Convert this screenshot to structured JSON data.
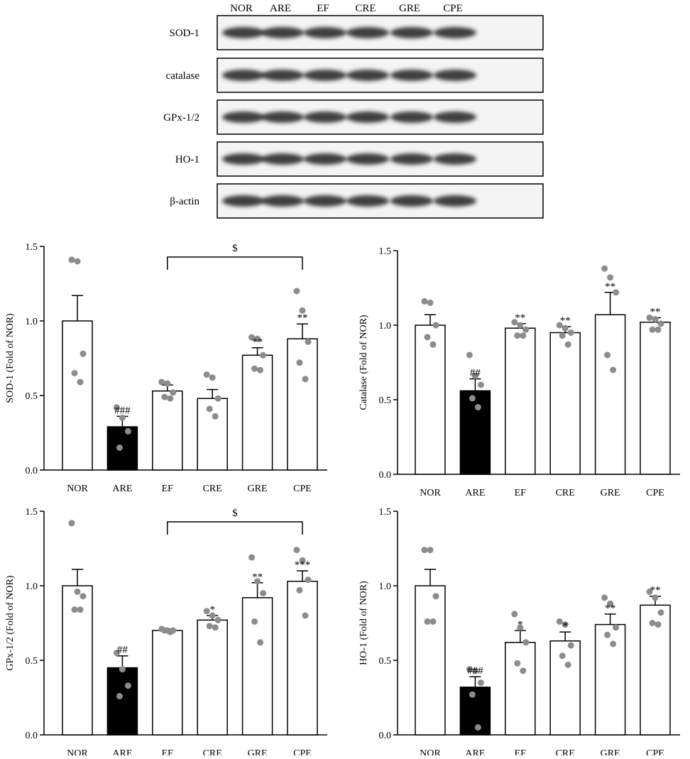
{
  "blot": {
    "lanes": [
      "NOR",
      "ARE",
      "EF",
      "CRE",
      "GRE",
      "CPE"
    ],
    "rows": [
      "SOD-1",
      "catalase",
      "GPx-1/2",
      "HO-1",
      "β-actin"
    ]
  },
  "chart_data": [
    {
      "type": "bar",
      "ylabel": "SOD-1 (Fold of NOR)",
      "categories": [
        "NOR",
        "ARE",
        "EF",
        "CRE",
        "GRE",
        "CPE"
      ],
      "values": [
        1.0,
        0.29,
        0.53,
        0.48,
        0.77,
        0.88
      ],
      "errors": [
        0.17,
        0.07,
        0.04,
        0.06,
        0.05,
        0.1
      ],
      "points": [
        [
          1.41,
          1.4,
          0.78,
          0.65,
          0.59
        ],
        [
          0.42,
          0.35,
          0.26,
          0.15
        ],
        [
          0.59,
          0.58,
          0.52,
          0.49,
          0.48
        ],
        [
          0.64,
          0.62,
          0.48,
          0.41,
          0.36
        ],
        [
          0.89,
          0.88,
          0.77,
          0.68,
          0.67
        ],
        [
          1.2,
          1.07,
          0.86,
          0.72,
          0.61
        ]
      ],
      "annotations": [
        null,
        "###",
        null,
        null,
        "**",
        "**"
      ],
      "bracket": {
        "label": "$",
        "categories": [
          "EF",
          "CPE"
        ]
      },
      "colors": [
        "#ffffff",
        "#000000",
        "#ffffff",
        "#ffffff",
        "#ffffff",
        "#ffffff"
      ],
      "point_color": "#8c8c8c",
      "ylim": [
        0,
        1.5
      ],
      "yticks": [
        {
          "value": 0,
          "label": "0.0"
        },
        0.5,
        {
          "value": 1,
          "label": "1.0"
        },
        1.5
      ]
    },
    {
      "type": "bar",
      "ylabel": "Catalase (Fold of NOR)",
      "categories": [
        "NOR",
        "ARE",
        "EF",
        "CRE",
        "GRE",
        "CPE"
      ],
      "values": [
        1.0,
        0.56,
        0.98,
        0.95,
        1.07,
        1.02
      ],
      "errors": [
        0.07,
        0.08,
        0.03,
        0.04,
        0.15,
        0.03
      ],
      "points": [
        [
          1.16,
          1.15,
          1.0,
          0.92,
          0.87
        ],
        [
          0.8,
          0.66,
          0.6,
          0.51,
          0.45
        ],
        [
          1.02,
          1.0,
          0.97,
          0.93,
          0.93
        ],
        [
          1.0,
          0.98,
          0.95,
          0.93,
          0.87
        ],
        [
          1.38,
          1.32,
          1.22,
          0.8,
          0.7
        ],
        [
          1.05,
          1.04,
          1.01,
          0.97,
          0.97
        ]
      ],
      "annotations": [
        null,
        "##",
        "**",
        "**",
        "**",
        "**"
      ],
      "colors": [
        "#ffffff",
        "#000000",
        "#ffffff",
        "#ffffff",
        "#ffffff",
        "#ffffff"
      ],
      "point_color": "#8c8c8c",
      "ylim": [
        0,
        1.5
      ],
      "yticks": [
        {
          "value": 0,
          "label": "0.0"
        },
        0.5,
        {
          "value": 1,
          "label": "1.0"
        },
        1.5
      ]
    },
    {
      "type": "bar",
      "ylabel": "GPx-1/2 (Fold of NOR)",
      "categories": [
        "NOR",
        "ARE",
        "EF",
        "CRE",
        "GRE",
        "CPE"
      ],
      "values": [
        1.0,
        0.45,
        0.7,
        0.77,
        0.92,
        1.03
      ],
      "errors": [
        0.11,
        0.08,
        0.01,
        0.03,
        0.1,
        0.07
      ],
      "points": [
        [
          1.42,
          0.96,
          0.93,
          0.84,
          0.84
        ],
        [
          0.55,
          0.44,
          0.33,
          0.26
        ],
        [
          0.71,
          0.7,
          0.7,
          0.7,
          0.69
        ],
        [
          0.83,
          0.8,
          0.77,
          0.73,
          0.72
        ],
        [
          1.19,
          1.03,
          0.95,
          0.76,
          0.62
        ],
        [
          1.24,
          1.17,
          1.04,
          0.97,
          0.8
        ]
      ],
      "annotations": [
        null,
        "##",
        null,
        "*",
        "**",
        "***"
      ],
      "bracket": {
        "label": "$",
        "categories": [
          "EF",
          "CPE"
        ]
      },
      "colors": [
        "#ffffff",
        "#000000",
        "#ffffff",
        "#ffffff",
        "#ffffff",
        "#ffffff"
      ],
      "point_color": "#8c8c8c",
      "ylim": [
        0,
        1.5
      ],
      "yticks": [
        {
          "value": 0,
          "label": "0.0"
        },
        0.5,
        {
          "value": 1,
          "label": "1.0"
        },
        1.5
      ]
    },
    {
      "type": "bar",
      "ylabel": "HO-1 (Fold of NOR)",
      "categories": [
        "NOR",
        "ARE",
        "EF",
        "CRE",
        "GRE",
        "CPE"
      ],
      "values": [
        1.0,
        0.32,
        0.62,
        0.63,
        0.74,
        0.87
      ],
      "errors": [
        0.11,
        0.07,
        0.08,
        0.06,
        0.07,
        0.06
      ],
      "points": [
        [
          1.24,
          1.24,
          0.93,
          0.76,
          0.76
        ],
        [
          0.44,
          0.43,
          0.35,
          0.27,
          0.05
        ],
        [
          0.81,
          0.72,
          0.62,
          0.48,
          0.43
        ],
        [
          0.76,
          0.74,
          0.6,
          0.53,
          0.47
        ],
        [
          0.92,
          0.88,
          0.72,
          0.67,
          0.61
        ],
        [
          0.96,
          0.92,
          0.82,
          0.75,
          0.74
        ]
      ],
      "annotations": [
        null,
        "###",
        "*",
        "*",
        "**",
        "**"
      ],
      "colors": [
        "#ffffff",
        "#000000",
        "#ffffff",
        "#ffffff",
        "#ffffff",
        "#ffffff"
      ],
      "point_color": "#8c8c8c",
      "ylim": [
        0,
        1.5
      ],
      "yticks": [
        {
          "value": 0,
          "label": "0.0"
        },
        0.5,
        {
          "value": 1,
          "label": "1.0"
        },
        1.5
      ]
    }
  ]
}
